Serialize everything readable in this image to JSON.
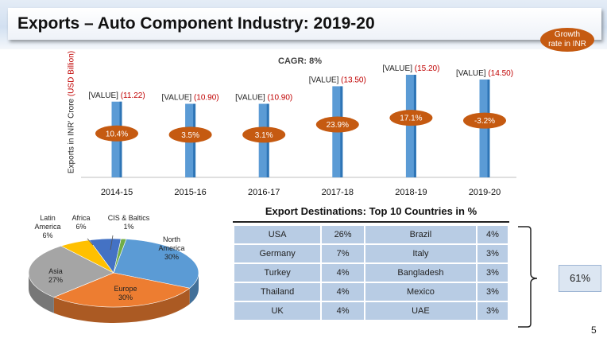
{
  "slide": {
    "title": "Exports – Auto Component Industry: 2019-20",
    "page_number": "5"
  },
  "growth_badge": "Growth rate in INR",
  "chart_data": [
    {
      "type": "bar",
      "ylabel": "Exports in INR' Crore",
      "ylabel_unit": "(USD Billion)",
      "annotation": "CAGR: 8%",
      "categories": [
        "2014-15",
        "2015-16",
        "2016-17",
        "2017-18",
        "2018-19",
        "2019-20"
      ],
      "values": [
        11.22,
        10.9,
        10.9,
        13.5,
        15.2,
        14.5
      ],
      "value_labels": [
        "[VALUE]",
        "[VALUE]",
        "[VALUE]",
        "[VALUE]",
        "[VALUE]",
        "[VALUE]"
      ],
      "usd_labels": [
        "(11.22)",
        "(10.90)",
        "(10.90)",
        "(13.50)",
        "(15.20)",
        "(14.50)"
      ],
      "growth_rates": [
        "10.4%",
        "3.5%",
        "3.1%",
        "23.9%",
        "17.1%",
        "-3.2%"
      ],
      "ylim": [
        0,
        15.2
      ],
      "grid": false,
      "colors": {
        "bar": "#5b9bd5",
        "bar_dark": "#2e75b6",
        "growth": "#c55a11",
        "usd": "#c00000"
      }
    },
    {
      "type": "pie",
      "labels": [
        "North America",
        "Europe",
        "Asia",
        "Latin America",
        "Africa",
        "CIS & Baltics"
      ],
      "values": [
        30,
        30,
        27,
        6,
        6,
        1
      ],
      "value_labels": [
        "30%",
        "30%",
        "27%",
        "6%",
        "6%",
        "1%"
      ],
      "colors": [
        "#5b9bd5",
        "#ed7d31",
        "#a5a5a5",
        "#ffc000",
        "#4472c4",
        "#70ad47"
      ]
    },
    {
      "type": "table",
      "title": "Export Destinations:  Top 10 Countries in %",
      "rows": [
        [
          "USA",
          "26%",
          "Brazil",
          "4%"
        ],
        [
          "Germany",
          "7%",
          "Italy",
          "3%"
        ],
        [
          "Turkey",
          "4%",
          "Bangladesh",
          "3%"
        ],
        [
          "Thailand",
          "4%",
          "Mexico",
          "3%"
        ],
        [
          "UK",
          "4%",
          "UAE",
          "3%"
        ]
      ],
      "total": "61%"
    }
  ]
}
